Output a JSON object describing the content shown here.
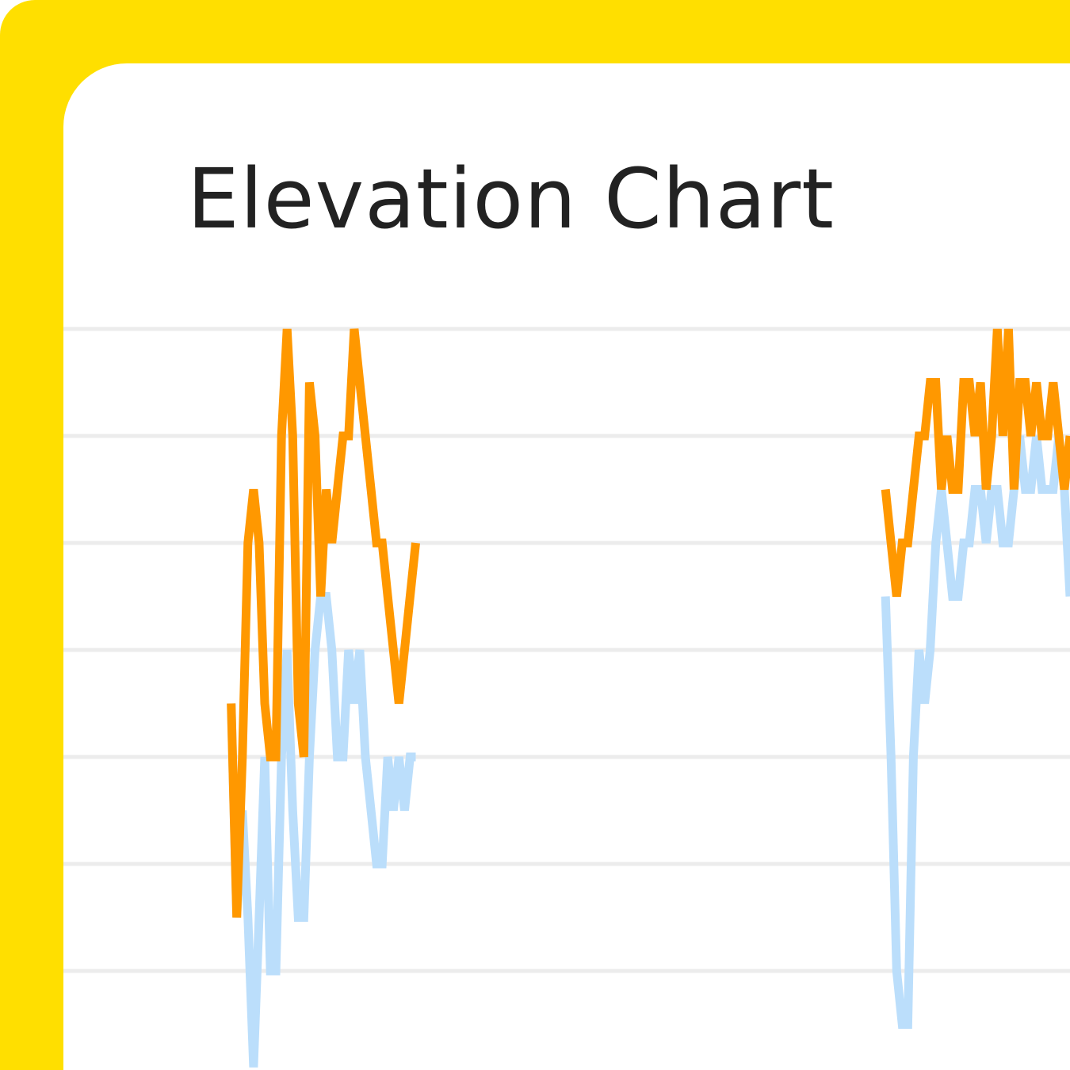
{
  "chart_data": {
    "type": "line",
    "title": "Elevation Chart",
    "x": [
      30,
      31,
      32,
      33,
      34,
      35,
      36,
      37,
      38,
      39,
      40,
      41,
      42,
      43,
      44,
      45,
      46,
      47,
      48,
      49,
      50,
      51,
      52,
      53,
      54,
      55,
      56,
      57,
      58,
      59,
      60,
      61,
      62,
      63,
      64,
      147,
      148,
      149,
      150,
      151,
      152,
      153,
      154,
      155,
      156,
      157,
      158,
      159,
      160,
      161,
      162,
      163,
      164,
      165,
      166,
      167,
      168,
      169,
      170,
      171,
      172,
      173,
      174,
      175,
      176,
      177,
      178,
      179,
      180
    ],
    "xlim": [
      0,
      180
    ],
    "ylim": [
      0,
      8
    ],
    "yticks": [
      1,
      2,
      3,
      4,
      5,
      6,
      7
    ],
    "grid": true,
    "series": [
      {
        "color": "#bbdefb",
        "values": [
          3.5,
          1.5,
          2.5,
          1.5,
          0.1,
          1.5,
          3.0,
          1.0,
          1.0,
          3.0,
          4.0,
          2.5,
          1.5,
          1.5,
          3.0,
          4.0,
          4.5,
          4.5,
          4.0,
          3.0,
          3.0,
          4.0,
          3.5,
          4.0,
          3.0,
          2.5,
          2.0,
          2.0,
          3.0,
          2.5,
          3.0,
          2.5,
          3.0,
          3.0,
          null,
          4.5,
          3.0,
          1.0,
          0.5,
          0.5,
          3.0,
          4.0,
          3.5,
          4.0,
          5.0,
          5.5,
          5.0,
          4.5,
          4.5,
          5.0,
          5.0,
          5.5,
          5.5,
          5.0,
          5.5,
          5.5,
          5.0,
          5.0,
          5.5,
          6.0,
          5.5,
          5.5,
          6.0,
          5.5,
          5.5,
          5.5,
          6.0,
          5.5,
          4.5
        ]
      },
      {
        "color": "#ff9800",
        "values": [
          3.5,
          1.5,
          3.0,
          5.0,
          5.5,
          5.0,
          3.5,
          3.0,
          3.0,
          6.0,
          7.0,
          6.0,
          3.5,
          3.0,
          6.5,
          6.0,
          4.5,
          5.5,
          5.0,
          5.5,
          6.0,
          6.0,
          7.0,
          6.5,
          6.0,
          5.5,
          5.0,
          5.0,
          4.5,
          4.0,
          3.5,
          4.0,
          4.5,
          5.0,
          null,
          5.5,
          5.0,
          4.5,
          5.0,
          5.0,
          5.5,
          6.0,
          6.0,
          6.5,
          6.5,
          5.5,
          6.0,
          5.5,
          5.5,
          6.5,
          6.5,
          6.0,
          6.5,
          5.5,
          6.0,
          7.0,
          6.0,
          7.0,
          5.5,
          6.5,
          6.5,
          6.0,
          6.5,
          6.0,
          6.0,
          6.5,
          6.0,
          5.5,
          6.0
        ]
      }
    ]
  }
}
